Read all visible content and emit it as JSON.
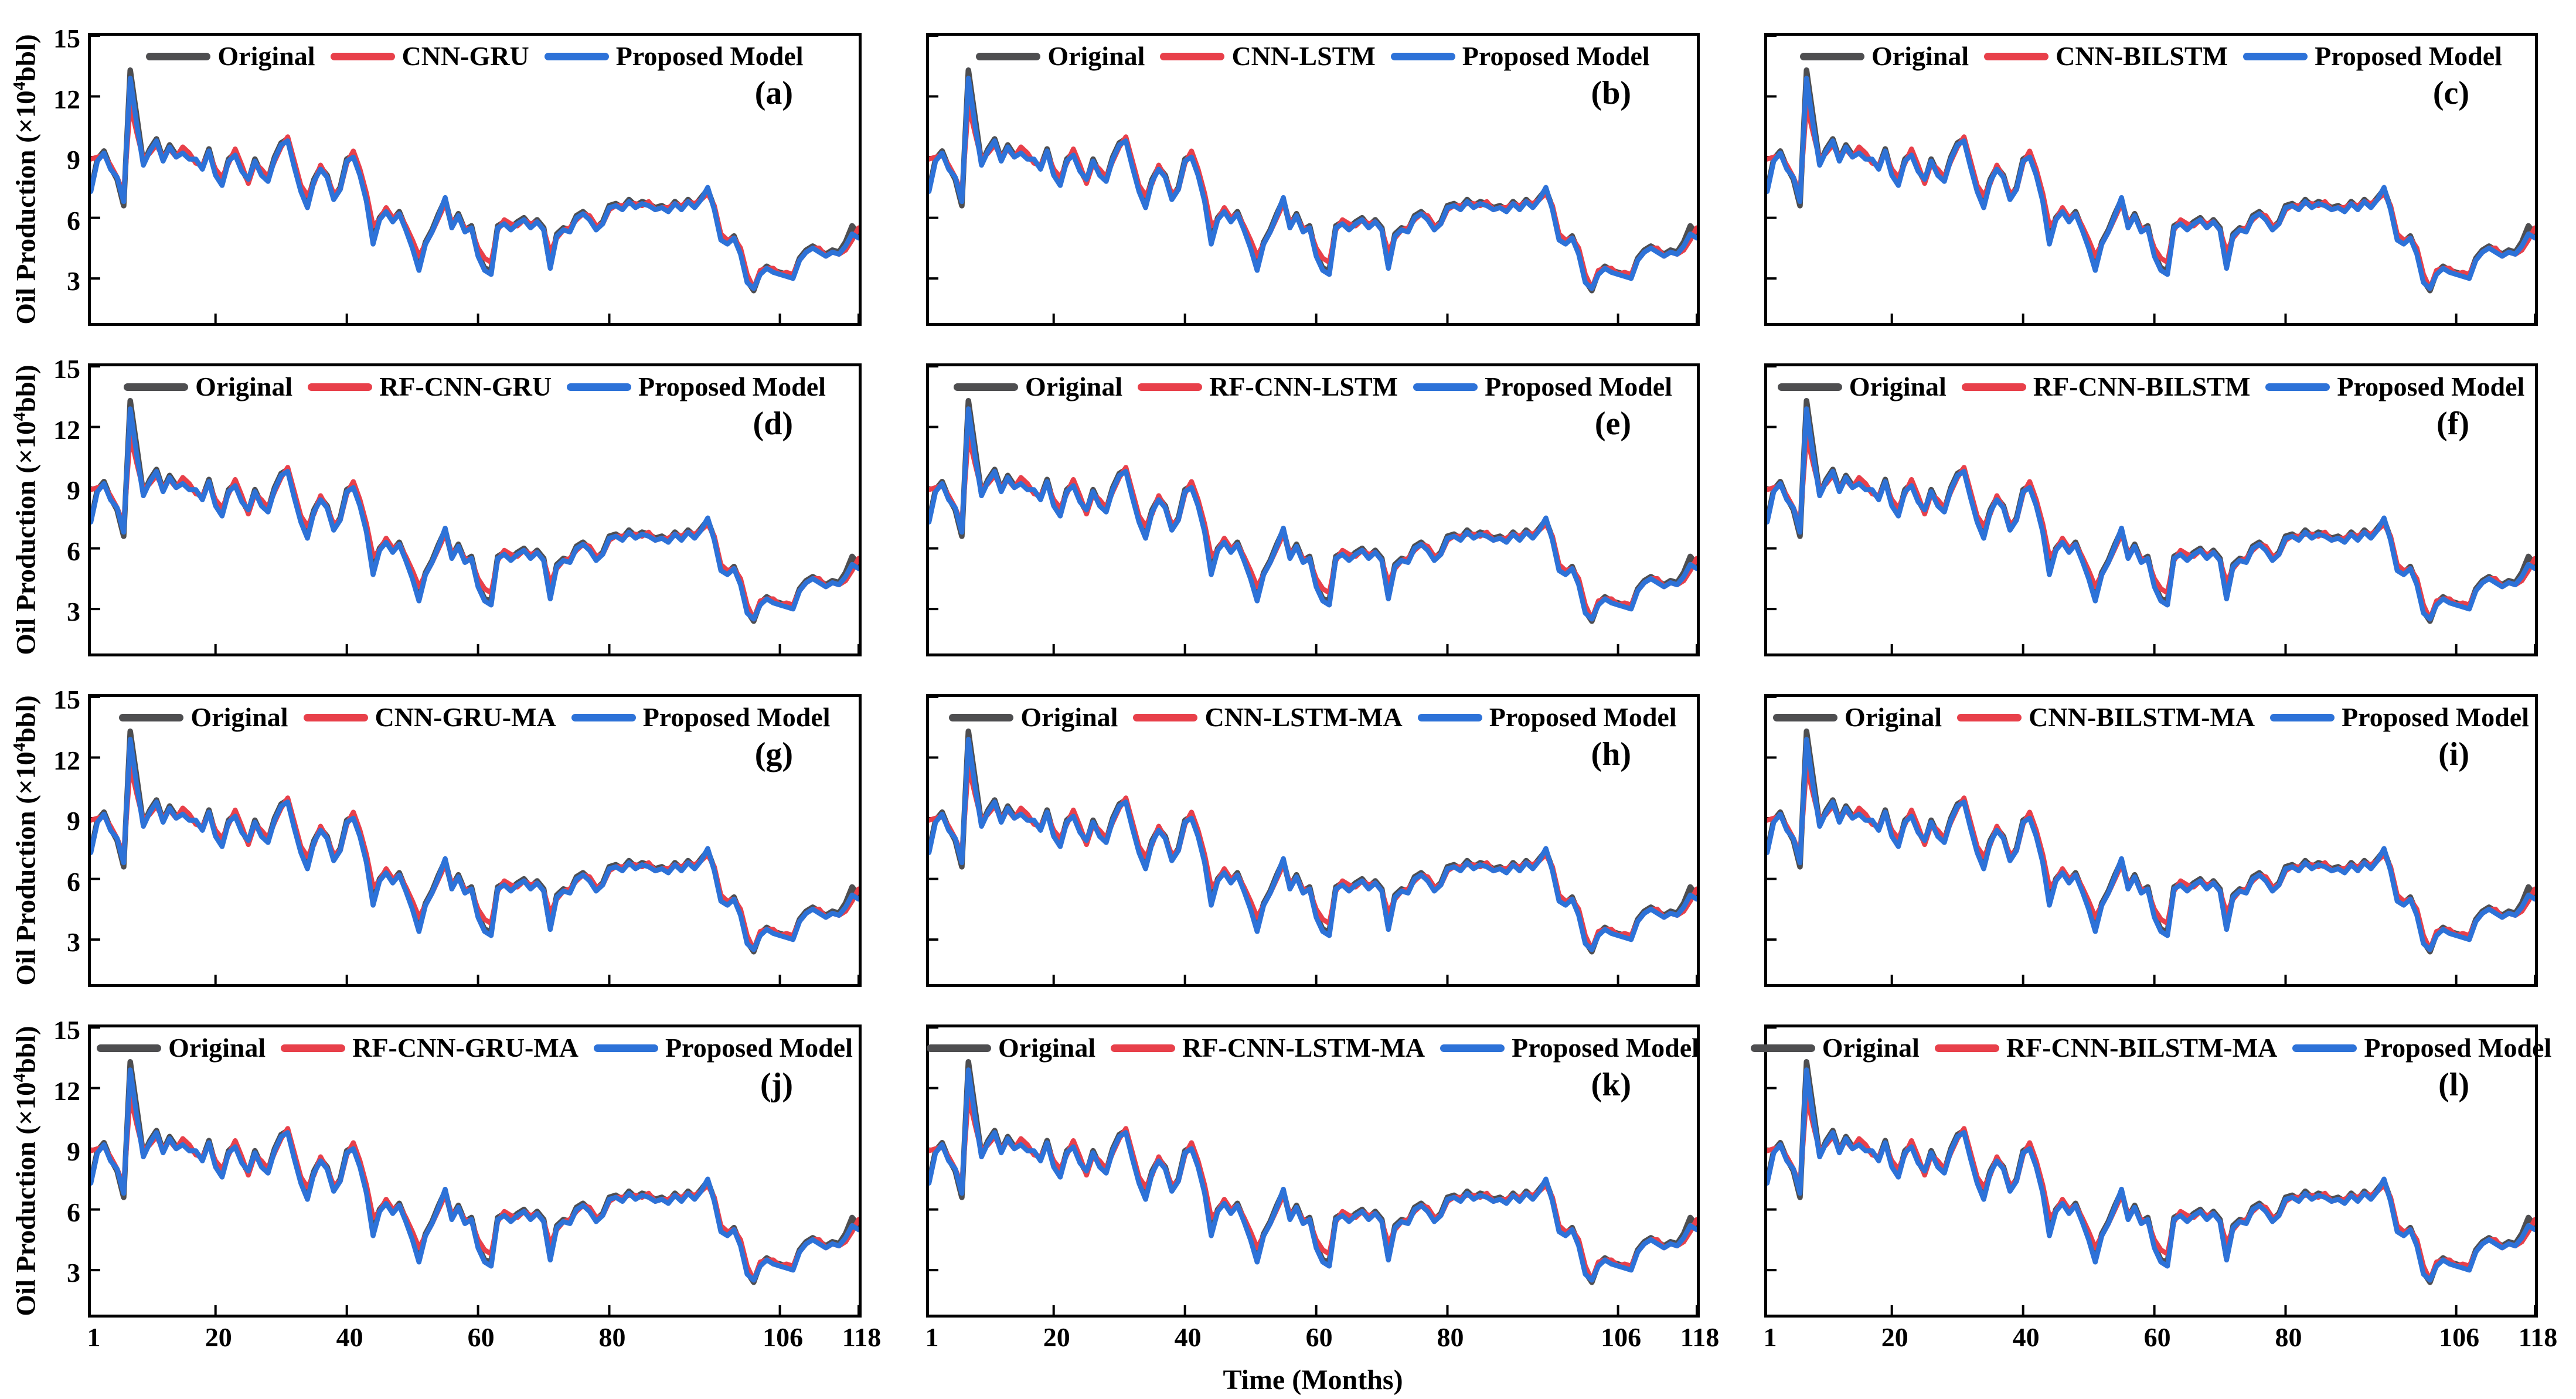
{
  "figure": {
    "xlabel": "Time (Months)",
    "ylabel_pre": "Oil Production (×10",
    "ylabel_sup": "4",
    "ylabel_post": "bbl)"
  },
  "legend": {
    "original_label": "Original",
    "proposed_label": "Proposed Model"
  },
  "colors": {
    "original": "#4e4e50",
    "model": "#e8404a",
    "proposed": "#2d72d8",
    "axis": "#000000"
  },
  "panels": [
    {
      "letter": "(a)",
      "model": "CNN-GRU"
    },
    {
      "letter": "(b)",
      "model": "CNN-LSTM"
    },
    {
      "letter": "(c)",
      "model": "CNN-BILSTM"
    },
    {
      "letter": "(d)",
      "model": "RF-CNN-GRU"
    },
    {
      "letter": "(e)",
      "model": "RF-CNN-LSTM"
    },
    {
      "letter": "(f)",
      "model": "RF-CNN-BILSTM"
    },
    {
      "letter": "(g)",
      "model": "CNN-GRU-MA"
    },
    {
      "letter": "(h)",
      "model": "CNN-LSTM-MA"
    },
    {
      "letter": "(i)",
      "model": "CNN-BILSTM-MA"
    },
    {
      "letter": "(j)",
      "model": "RF-CNN-GRU-MA"
    },
    {
      "letter": "(k)",
      "model": "RF-CNN-LSTM-MA"
    },
    {
      "letter": "(l)",
      "model": "RF-CNN-BILSTM-MA"
    }
  ],
  "chart_data": {
    "type": "line",
    "layout": "12 subplots (4 rows x 3 columns), each comparing the same Original series against one model estimate (red) and the Proposed Model (blue)",
    "xlabel": "Time (Months)",
    "ylabel": "Oil Production (×10⁴bbl)",
    "xlim": [
      1,
      118
    ],
    "ylim": [
      0.8,
      15
    ],
    "x_ticks": [
      1,
      20,
      40,
      60,
      80,
      106,
      118
    ],
    "y_ticks": [
      3,
      6,
      9,
      12,
      15
    ],
    "grid": false,
    "legend_position": "top center inside axes",
    "x": "Month index 1..118",
    "series": [
      {
        "name": "Original",
        "color": "#4e4e50",
        "values": [
          7.4,
          8.9,
          9.3,
          8.5,
          7.9,
          6.6,
          13.3,
          11.0,
          8.7,
          9.4,
          9.9,
          8.9,
          9.6,
          9.1,
          9.3,
          9.0,
          8.8,
          8.5,
          9.4,
          8.2,
          7.7,
          8.9,
          9.2,
          8.4,
          7.8,
          8.9,
          8.2,
          7.9,
          9.0,
          9.7,
          9.9,
          8.6,
          7.4,
          6.8,
          7.9,
          8.5,
          8.1,
          7.0,
          7.5,
          8.9,
          9.1,
          8.2,
          6.9,
          4.9,
          6.0,
          6.4,
          5.9,
          6.3,
          5.5,
          4.6,
          3.6,
          4.8,
          5.4,
          6.2,
          6.9,
          5.6,
          6.2,
          5.4,
          5.6,
          4.2,
          3.5,
          3.4,
          5.6,
          5.8,
          5.5,
          5.8,
          6.0,
          5.6,
          5.9,
          5.5,
          3.6,
          5.2,
          5.5,
          5.4,
          6.1,
          6.3,
          6.0,
          5.5,
          5.8,
          6.6,
          6.7,
          6.5,
          6.9,
          6.6,
          6.8,
          6.7,
          6.5,
          6.6,
          6.4,
          6.8,
          6.5,
          6.9,
          6.6,
          7.0,
          7.4,
          6.5,
          5.0,
          4.8,
          5.1,
          4.3,
          2.9,
          2.4,
          3.3,
          3.6,
          3.4,
          3.3,
          3.2,
          3.1,
          4.0,
          4.4,
          4.6,
          4.4,
          4.2,
          4.4,
          4.3,
          4.8,
          5.6,
          5.2
        ]
      },
      {
        "name": "Model estimate (red line; legend label varies per panel)",
        "color": "#e8404a",
        "values": [
          8.9,
          9.0,
          9.1,
          8.6,
          8.0,
          7.2,
          11.6,
          10.2,
          8.9,
          9.2,
          9.6,
          9.0,
          9.4,
          9.0,
          9.5,
          9.2,
          8.7,
          8.6,
          9.2,
          8.4,
          8.0,
          8.7,
          9.4,
          8.6,
          7.7,
          8.7,
          8.4,
          8.0,
          8.8,
          9.5,
          10.0,
          8.8,
          7.6,
          7.1,
          7.7,
          8.6,
          8.0,
          7.2,
          7.4,
          8.7,
          9.3,
          8.4,
          7.2,
          5.6,
          5.9,
          6.5,
          6.0,
          6.2,
          5.6,
          4.9,
          4.1,
          4.7,
          5.3,
          6.0,
          6.7,
          5.8,
          6.0,
          5.5,
          5.4,
          4.5,
          4.0,
          3.8,
          5.4,
          5.9,
          5.7,
          5.6,
          5.9,
          5.7,
          5.8,
          5.4,
          4.3,
          5.0,
          5.4,
          5.5,
          5.9,
          6.2,
          6.1,
          5.6,
          5.7,
          6.4,
          6.6,
          6.6,
          6.7,
          6.7,
          6.6,
          6.8,
          6.4,
          6.5,
          6.5,
          6.7,
          6.6,
          6.8,
          6.7,
          6.9,
          7.2,
          6.6,
          5.2,
          4.9,
          5.0,
          4.5,
          3.2,
          2.5,
          3.4,
          3.5,
          3.5,
          3.2,
          3.3,
          3.2,
          3.9,
          4.3,
          4.5,
          4.5,
          4.1,
          4.3,
          4.2,
          4.4,
          4.9,
          5.5
        ]
      },
      {
        "name": "Proposed Model",
        "color": "#2d72d8",
        "values": [
          7.3,
          8.8,
          9.2,
          8.4,
          8.0,
          6.8,
          12.9,
          10.6,
          8.6,
          9.3,
          9.8,
          8.8,
          9.5,
          9.0,
          9.2,
          8.9,
          8.9,
          8.4,
          9.3,
          8.1,
          7.6,
          8.8,
          9.1,
          8.3,
          7.9,
          8.8,
          8.1,
          7.8,
          8.9,
          9.6,
          9.8,
          8.5,
          7.3,
          6.5,
          7.8,
          8.4,
          8.0,
          6.9,
          7.4,
          8.8,
          9.0,
          8.1,
          6.8,
          4.7,
          5.9,
          6.3,
          5.8,
          6.2,
          5.4,
          4.5,
          3.4,
          4.7,
          5.3,
          6.1,
          7.0,
          5.5,
          6.1,
          5.3,
          5.5,
          4.1,
          3.4,
          3.2,
          5.5,
          5.7,
          5.4,
          5.7,
          5.9,
          5.5,
          5.8,
          5.4,
          3.5,
          5.1,
          5.4,
          5.3,
          6.0,
          6.2,
          5.9,
          5.4,
          5.7,
          6.5,
          6.6,
          6.4,
          6.8,
          6.5,
          6.7,
          6.6,
          6.4,
          6.5,
          6.3,
          6.7,
          6.4,
          6.8,
          6.5,
          6.9,
          7.5,
          6.4,
          4.9,
          4.7,
          5.0,
          4.2,
          2.8,
          2.5,
          3.2,
          3.5,
          3.3,
          3.2,
          3.1,
          3.0,
          3.9,
          4.3,
          4.5,
          4.3,
          4.1,
          4.3,
          4.2,
          4.6,
          5.2,
          5.0
        ]
      }
    ]
  }
}
